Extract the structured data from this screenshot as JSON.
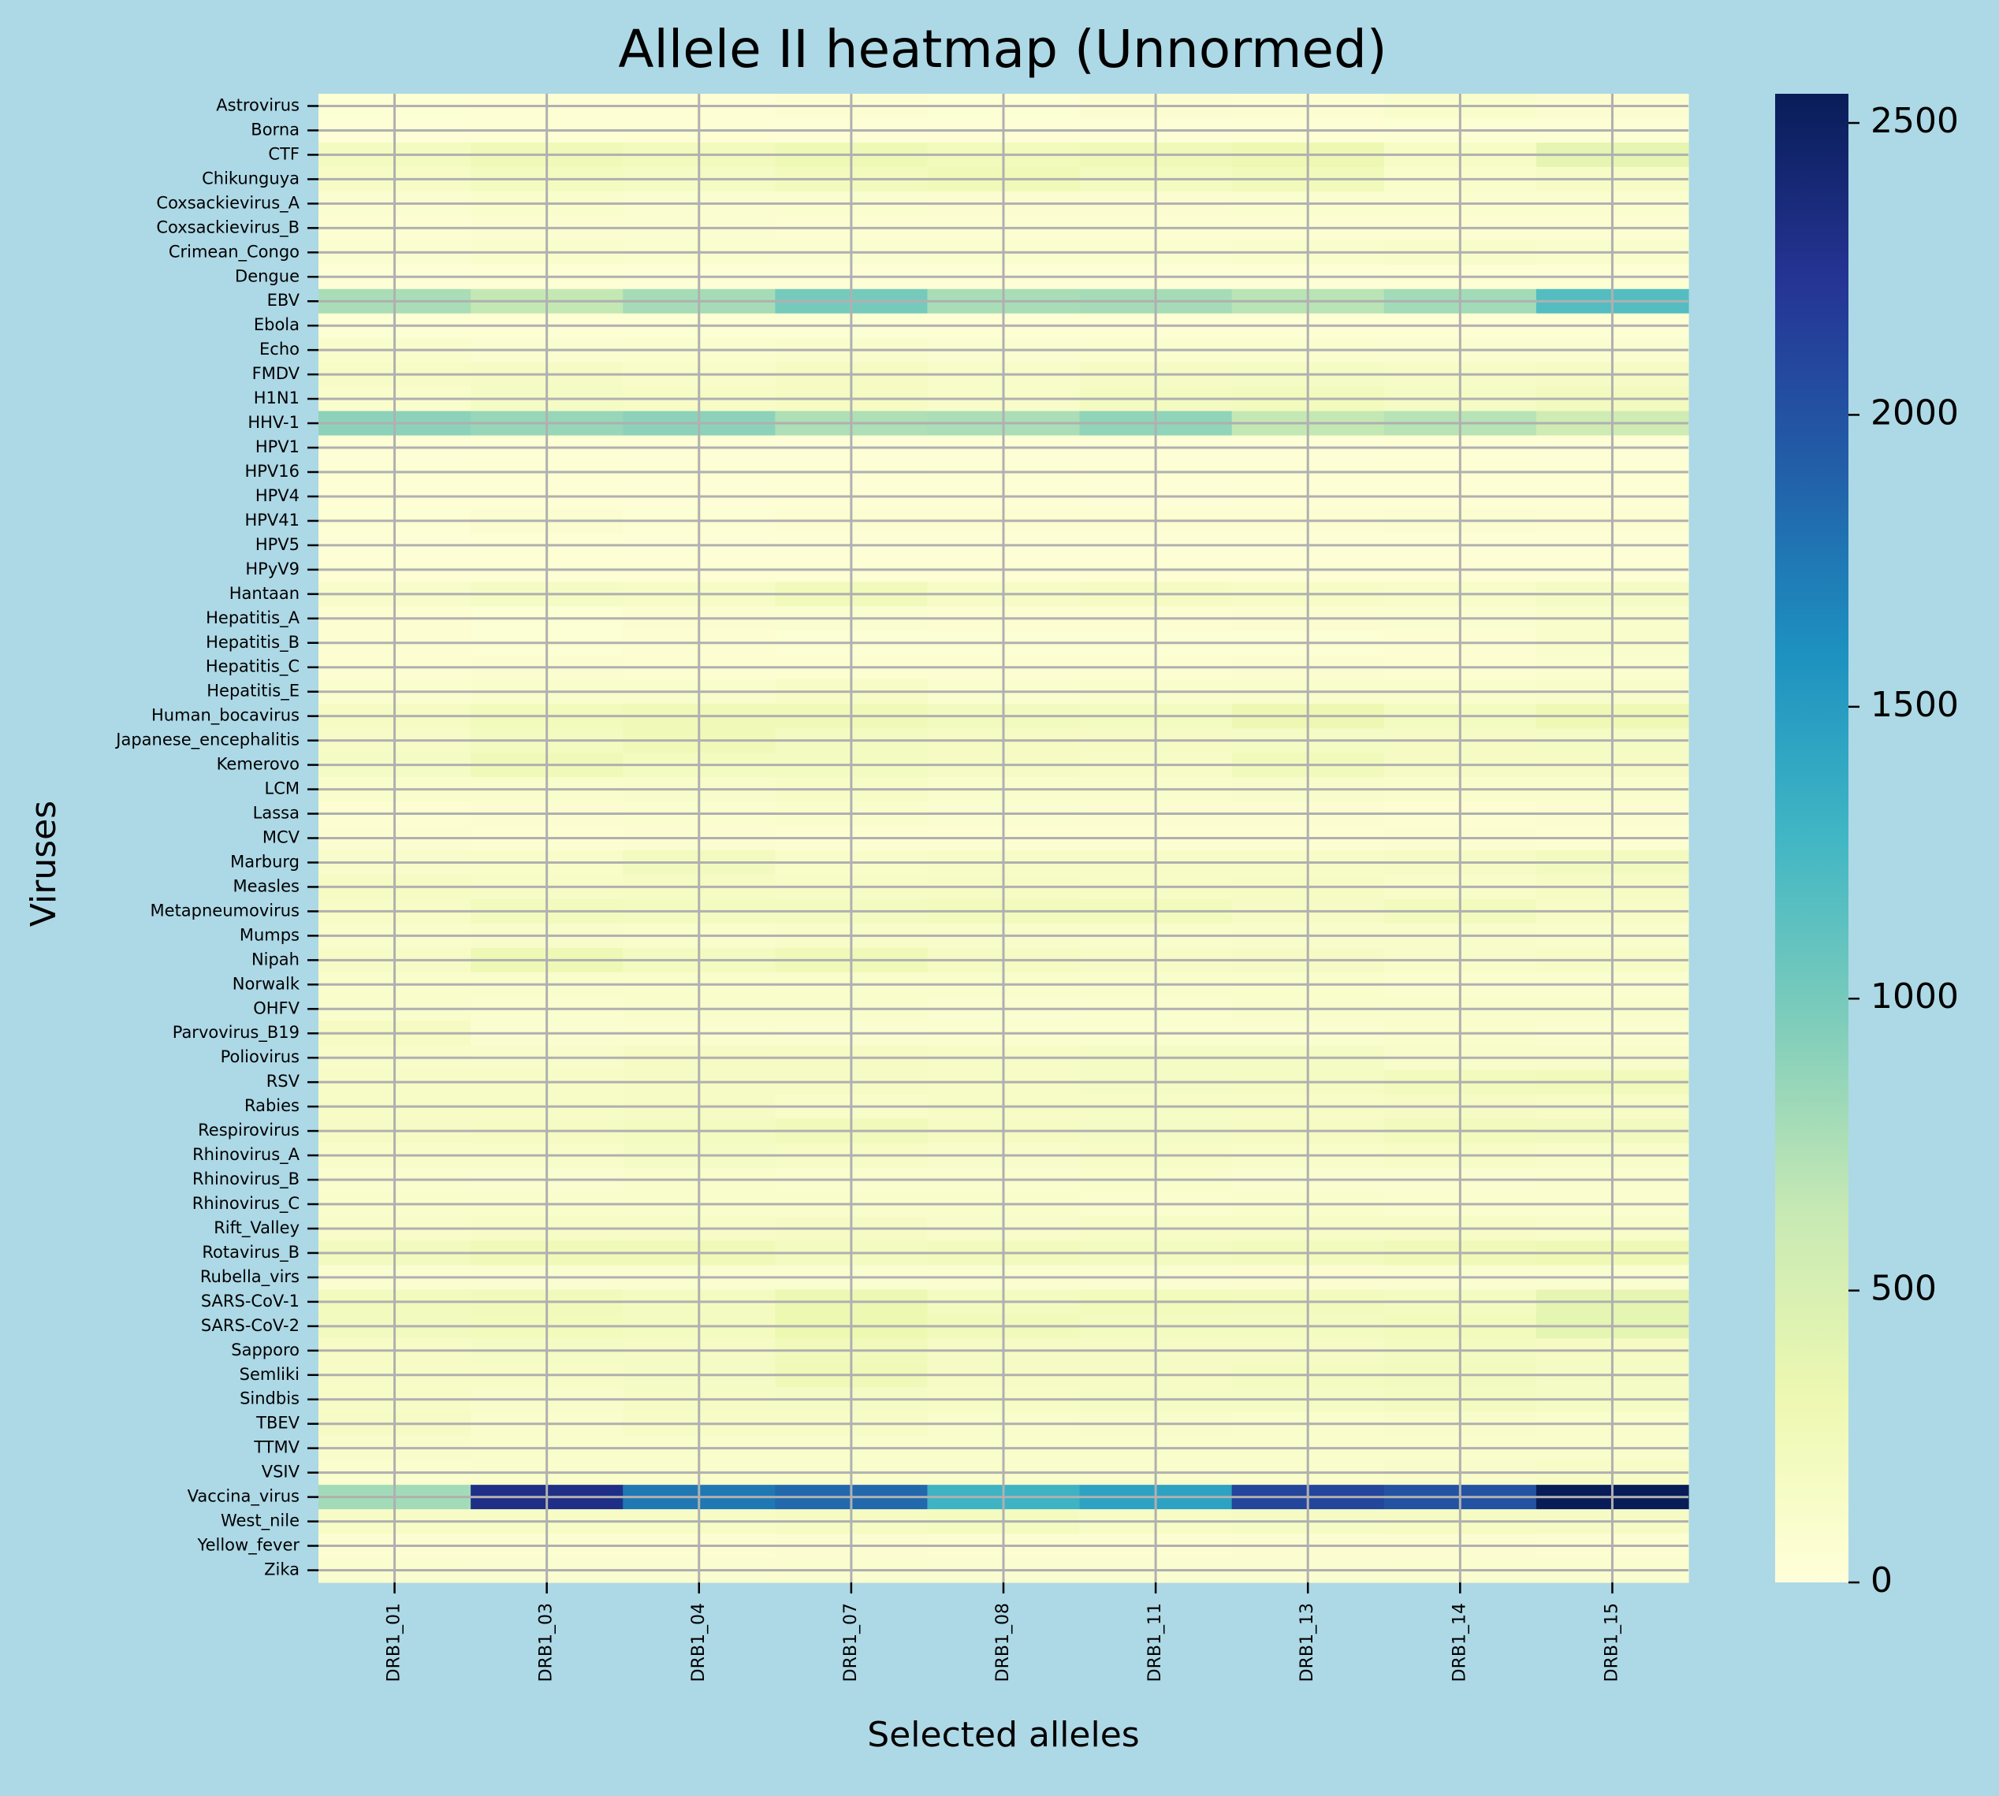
{
  "chart_data": {
    "type": "heatmap",
    "title": "Allele II heatmap (Unnormed)",
    "xlabel": "Selected alleles",
    "ylabel": "Viruses",
    "grid": true,
    "colormap": "YlGnBu",
    "colorbar": {
      "range": [
        0,
        2550
      ],
      "ticks": [
        0,
        500,
        1000,
        1500,
        2000,
        2500
      ],
      "tick_labels": [
        "0",
        "500",
        "1000",
        "1500",
        "2000",
        "2500"
      ],
      "stops": [
        "#ffffd9",
        "#edf8b1",
        "#c7e9b4",
        "#7fcdbb",
        "#41b6c4",
        "#1d91c0",
        "#225ea8",
        "#253494",
        "#081d58"
      ]
    },
    "x_categories": [
      "DRB1_01",
      "DRB1_03",
      "DRB1_04",
      "DRB1_07",
      "DRB1_08",
      "DRB1_11",
      "DRB1_13",
      "DRB1_14",
      "DRB1_15"
    ],
    "y_categories": [
      "Astrovirus",
      "Borna",
      "CTF",
      "Chikunguya",
      "Coxsackievirus_A",
      "Coxsackievirus_B",
      "Crimean_Congo",
      "Dengue",
      "EBV",
      "Ebola",
      "Echo",
      "FMDV",
      "H1N1",
      "HHV-1",
      "HPV1",
      "HPV16",
      "HPV4",
      "HPV41",
      "HPV5",
      "HPyV9",
      "Hantaan",
      "Hepatitis_A",
      "Hepatitis_B",
      "Hepatitis_C",
      "Hepatitis_E",
      "Human_bocavirus",
      "Japanese_encephalitis",
      "Kemerovo",
      "LCM",
      "Lassa",
      "MCV",
      "Marburg",
      "Measles",
      "Metapneumovirus",
      "Mumps",
      "Nipah",
      "Norwalk",
      "OHFV",
      "Parvovirus_B19",
      "Poliovirus",
      "RSV",
      "Rabies",
      "Respirovirus",
      "Rhinovirus_A",
      "Rhinovirus_B",
      "Rhinovirus_C",
      "Rift_Valley",
      "Rotavirus_B",
      "Rubella_virs",
      "SARS-CoV-1",
      "SARS-CoV-2",
      "Sapporo",
      "Semliki",
      "Sindbis",
      "TBEV",
      "TTMV",
      "VSIV",
      "Vaccina_virus",
      "West_nile",
      "Yellow_fever",
      "Zika"
    ],
    "values": [
      [
        50,
        40,
        40,
        60,
        50,
        70,
        60,
        110,
        70
      ],
      [
        30,
        40,
        40,
        30,
        30,
        30,
        40,
        50,
        40
      ],
      [
        200,
        260,
        220,
        280,
        230,
        260,
        300,
        150,
        380
      ],
      [
        150,
        200,
        170,
        220,
        270,
        200,
        250,
        100,
        150
      ],
      [
        80,
        100,
        80,
        90,
        70,
        70,
        90,
        90,
        90
      ],
      [
        60,
        70,
        80,
        60,
        60,
        60,
        60,
        60,
        60
      ],
      [
        80,
        100,
        90,
        80,
        90,
        90,
        100,
        120,
        100
      ],
      [
        30,
        40,
        30,
        30,
        30,
        30,
        30,
        40,
        40
      ],
      [
        770,
        650,
        790,
        1000,
        770,
        790,
        700,
        800,
        1180
      ],
      [
        50,
        40,
        50,
        50,
        40,
        40,
        40,
        40,
        40
      ],
      [
        100,
        80,
        90,
        100,
        80,
        90,
        90,
        80,
        80
      ],
      [
        150,
        160,
        130,
        180,
        130,
        160,
        170,
        140,
        160
      ],
      [
        110,
        170,
        140,
        180,
        130,
        190,
        220,
        170,
        210
      ],
      [
        900,
        850,
        900,
        750,
        760,
        880,
        650,
        710,
        580
      ],
      [
        30,
        40,
        30,
        30,
        30,
        30,
        30,
        40,
        30
      ],
      [
        40,
        40,
        40,
        40,
        50,
        40,
        40,
        40,
        40
      ],
      [
        40,
        40,
        30,
        40,
        40,
        30,
        40,
        40,
        40
      ],
      [
        50,
        70,
        50,
        60,
        60,
        60,
        60,
        70,
        60
      ],
      [
        30,
        40,
        30,
        30,
        30,
        30,
        30,
        30,
        30
      ],
      [
        40,
        40,
        40,
        40,
        40,
        40,
        40,
        40,
        40
      ],
      [
        120,
        170,
        150,
        250,
        140,
        180,
        140,
        130,
        170
      ],
      [
        60,
        50,
        70,
        80,
        60,
        60,
        70,
        80,
        100
      ],
      [
        60,
        50,
        60,
        50,
        50,
        50,
        50,
        60,
        110
      ],
      [
        60,
        70,
        60,
        60,
        60,
        60,
        70,
        60,
        90
      ],
      [
        90,
        110,
        110,
        150,
        90,
        100,
        110,
        110,
        120
      ],
      [
        180,
        230,
        260,
        270,
        210,
        200,
        300,
        190,
        290
      ],
      [
        150,
        200,
        270,
        190,
        180,
        160,
        170,
        160,
        170
      ],
      [
        170,
        260,
        190,
        190,
        160,
        140,
        240,
        160,
        160
      ],
      [
        100,
        110,
        120,
        140,
        110,
        100,
        120,
        110,
        110
      ],
      [
        60,
        70,
        90,
        100,
        80,
        70,
        70,
        60,
        70
      ],
      [
        70,
        60,
        70,
        60,
        60,
        60,
        60,
        70,
        60
      ],
      [
        120,
        130,
        210,
        130,
        140,
        140,
        140,
        160,
        210
      ],
      [
        180,
        140,
        180,
        150,
        160,
        150,
        160,
        130,
        160
      ],
      [
        140,
        220,
        190,
        190,
        230,
        230,
        160,
        220,
        150
      ],
      [
        110,
        120,
        110,
        130,
        120,
        110,
        120,
        120,
        110
      ],
      [
        140,
        280,
        190,
        260,
        180,
        140,
        160,
        130,
        140
      ],
      [
        110,
        100,
        110,
        110,
        110,
        100,
        110,
        90,
        90
      ],
      [
        100,
        90,
        100,
        100,
        80,
        90,
        110,
        100,
        100
      ],
      [
        180,
        80,
        90,
        80,
        90,
        90,
        90,
        110,
        90
      ],
      [
        130,
        120,
        160,
        160,
        140,
        170,
        170,
        120,
        120
      ],
      [
        140,
        140,
        160,
        160,
        150,
        170,
        180,
        220,
        250
      ],
      [
        140,
        140,
        160,
        130,
        150,
        150,
        150,
        160,
        150
      ],
      [
        160,
        180,
        190,
        240,
        180,
        170,
        180,
        220,
        210
      ],
      [
        130,
        130,
        170,
        140,
        120,
        150,
        130,
        150,
        130
      ],
      [
        90,
        80,
        110,
        90,
        90,
        100,
        80,
        80,
        90
      ],
      [
        110,
        100,
        110,
        110,
        100,
        90,
        100,
        90,
        90
      ],
      [
        130,
        140,
        140,
        160,
        120,
        140,
        140,
        150,
        130
      ],
      [
        210,
        270,
        270,
        200,
        220,
        200,
        220,
        260,
        290
      ],
      [
        80,
        80,
        80,
        80,
        80,
        80,
        70,
        80,
        80
      ],
      [
        220,
        240,
        200,
        310,
        200,
        230,
        220,
        200,
        380
      ],
      [
        210,
        230,
        200,
        320,
        240,
        200,
        200,
        230,
        390
      ],
      [
        150,
        170,
        160,
        250,
        160,
        160,
        160,
        200,
        180
      ],
      [
        140,
        140,
        170,
        260,
        160,
        160,
        200,
        210,
        170
      ],
      [
        140,
        120,
        160,
        170,
        150,
        170,
        170,
        200,
        170
      ],
      [
        160,
        110,
        140,
        140,
        110,
        120,
        110,
        120,
        110
      ],
      [
        120,
        100,
        110,
        110,
        100,
        100,
        110,
        110,
        110
      ],
      [
        90,
        110,
        110,
        100,
        100,
        110,
        110,
        120,
        150
      ],
      [
        800,
        2300,
        1750,
        1850,
        1300,
        1450,
        2100,
        2000,
        2550
      ],
      [
        150,
        150,
        150,
        180,
        190,
        150,
        170,
        180,
        160
      ],
      [
        60,
        60,
        60,
        70,
        60,
        60,
        70,
        70,
        60
      ],
      [
        90,
        80,
        80,
        90,
        80,
        80,
        80,
        90,
        90
      ]
    ]
  }
}
